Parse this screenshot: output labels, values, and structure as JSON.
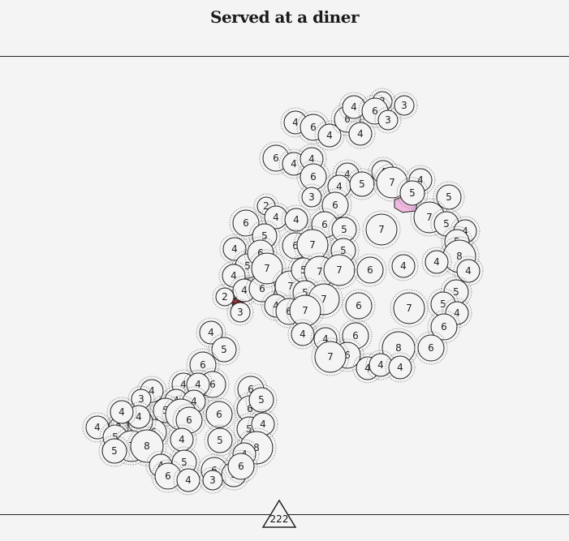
{
  "puzzle": {
    "title": "Served at a diner",
    "page_number": "222"
  },
  "colors": {
    "background": "#f5f4f4",
    "stroke": "#222222",
    "ring": "#888888",
    "filled_dark": "#7a1f1f",
    "filled_pink": "#f0b8e0"
  },
  "filled_cells": [
    "dark-red",
    "pink"
  ],
  "cells": [
    "4",
    "6",
    "4",
    "6",
    "4",
    "3",
    "6",
    "3",
    "3",
    "4",
    "6",
    "4",
    "4",
    "6",
    "4",
    "4",
    "4",
    "5",
    "7",
    "4",
    "5",
    "5",
    "2",
    "4",
    "3",
    "6",
    "6",
    "5",
    "4",
    "6",
    "5",
    "7",
    "7",
    "5",
    "4",
    "4",
    "5",
    "6",
    "6",
    "7",
    "5",
    "5",
    "8",
    "4",
    "4",
    "6",
    "7",
    "7",
    "5",
    "7",
    "7",
    "6",
    "4",
    "5",
    "7",
    "4",
    "4",
    "2",
    "4",
    "6",
    "7",
    "6",
    "7",
    "3",
    "4",
    "6",
    "6",
    "4",
    "7",
    "5",
    "5",
    "4",
    "4",
    "5",
    "6",
    "4",
    "8",
    "6",
    "6",
    "4",
    "4",
    "4",
    "4",
    "4",
    "4",
    "6",
    "6",
    "4",
    "4",
    "3",
    "6",
    "5",
    "5",
    "7",
    "6",
    "4",
    "3",
    "4",
    "6",
    "6",
    "5",
    "5",
    "5",
    "4",
    "5",
    "4",
    "7",
    "8",
    "8",
    "5",
    "4",
    "4",
    "5",
    "6",
    "6",
    "5",
    "4",
    "3",
    "6",
    "4",
    "4"
  ]
}
